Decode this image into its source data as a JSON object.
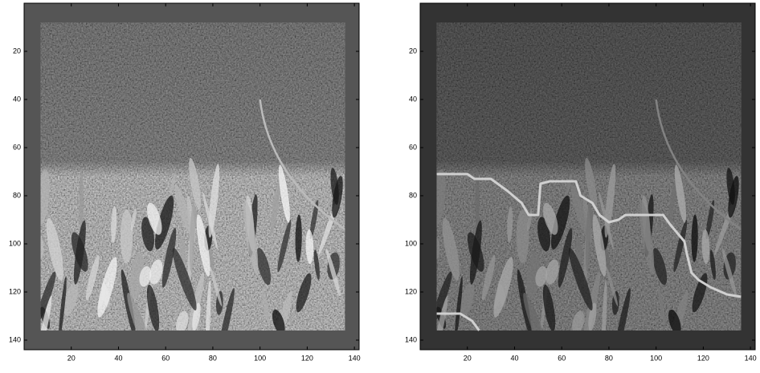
{
  "chart_data": [
    {
      "type": "image",
      "xlim": [
        0,
        142
      ],
      "ylim": [
        0,
        144
      ],
      "xticks": [
        20,
        40,
        60,
        80,
        100,
        120,
        140
      ],
      "yticks": [
        20,
        40,
        60,
        80,
        100,
        120,
        140
      ]
    },
    {
      "type": "image",
      "xlim": [
        0,
        142
      ],
      "ylim": [
        0,
        144
      ],
      "xticks": [
        20,
        40,
        60,
        80,
        100,
        120,
        140
      ],
      "yticks": [
        20,
        40,
        60,
        80,
        100,
        120,
        140
      ],
      "series": [
        {
          "color": "#d0d0d0",
          "x": [
            7,
            20,
            23,
            30,
            37,
            43,
            46,
            50,
            51,
            55,
            66,
            68,
            73,
            76,
            80,
            84,
            87,
            94,
            103,
            106,
            112,
            113,
            115,
            118,
            123,
            130,
            136
          ],
          "values": [
            71,
            71,
            73,
            73,
            78,
            83,
            88,
            88,
            75,
            74,
            74,
            80,
            83,
            88,
            91,
            90,
            88,
            88,
            88,
            92,
            99,
            104,
            112,
            115,
            118,
            121,
            122
          ]
        },
        {
          "color": "#d0d0d0",
          "x": [
            7,
            17,
            22,
            25
          ],
          "values": [
            129,
            129,
            132,
            136
          ]
        }
      ]
    }
  ]
}
